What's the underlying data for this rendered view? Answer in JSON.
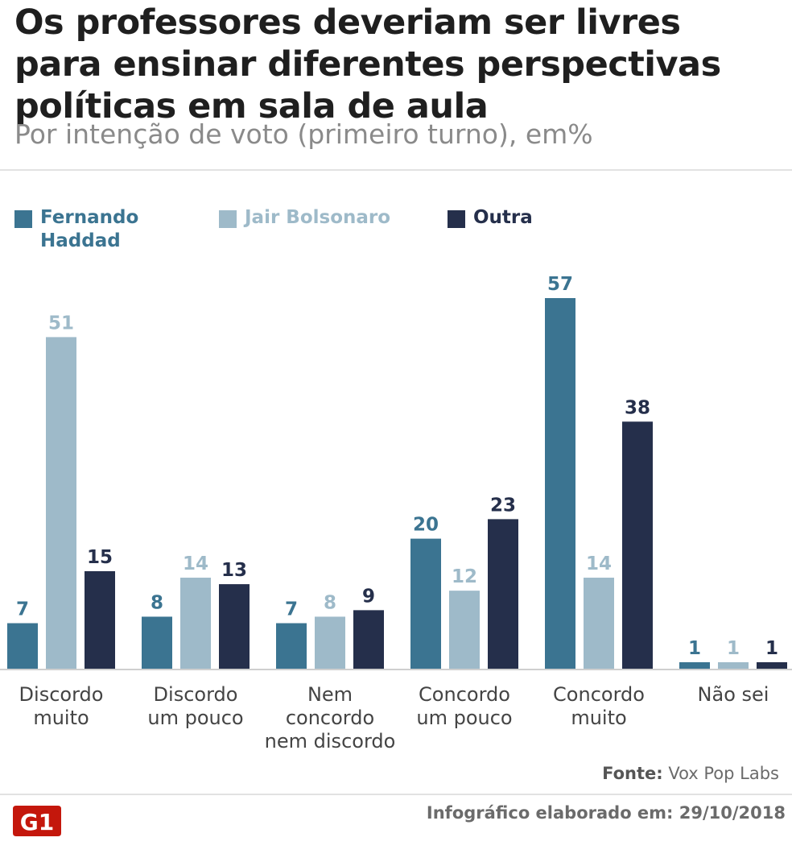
{
  "title_lines": [
    "Os professores deveriam ser livres",
    "para ensinar diferentes perspectivas",
    "políticas em sala de aula"
  ],
  "subtitle": "Por intenção de voto (primeiro turno), em%",
  "legend": [
    {
      "label": "Fernando Haddad",
      "color": "#3b7491"
    },
    {
      "label": "Jair Bolsonaro",
      "color": "#9ebac9"
    },
    {
      "label": "Outra",
      "color": "#252f4b"
    }
  ],
  "chart_data": {
    "type": "bar",
    "title": "Os professores deveriam ser livres para ensinar diferentes perspectivas políticas em sala de aula",
    "subtitle": "Por intenção de voto (primeiro turno), em%",
    "categories": [
      [
        "Discordo",
        "muito"
      ],
      [
        "Discordo",
        "um pouco"
      ],
      [
        "Nem",
        "concordo",
        "nem discordo"
      ],
      [
        "Concordo",
        "um pouco"
      ],
      [
        "Concordo",
        "muito"
      ],
      [
        "Não sei"
      ]
    ],
    "series": [
      {
        "name": "Fernando Haddad",
        "color": "#3b7491",
        "label_color": "#3b7491",
        "values": [
          7,
          8,
          7,
          20,
          57,
          1
        ]
      },
      {
        "name": "Jair Bolsonaro",
        "color": "#9ebac9",
        "label_color": "#9ebac9",
        "values": [
          51,
          14,
          8,
          12,
          14,
          1
        ]
      },
      {
        "name": "Outra",
        "color": "#252f4b",
        "label_color": "#252f4b",
        "values": [
          15,
          13,
          9,
          23,
          38,
          1
        ]
      }
    ],
    "ylim": [
      0,
      57
    ],
    "grid": false,
    "xlabel": "",
    "ylabel": ""
  },
  "source": {
    "label": "Fonte:",
    "value": "Vox Pop Labs"
  },
  "footer": {
    "label": "Infográfico elaborado em:",
    "date": "29/10/2018"
  },
  "logo": {
    "text": "G1",
    "color": "#c4170c"
  }
}
